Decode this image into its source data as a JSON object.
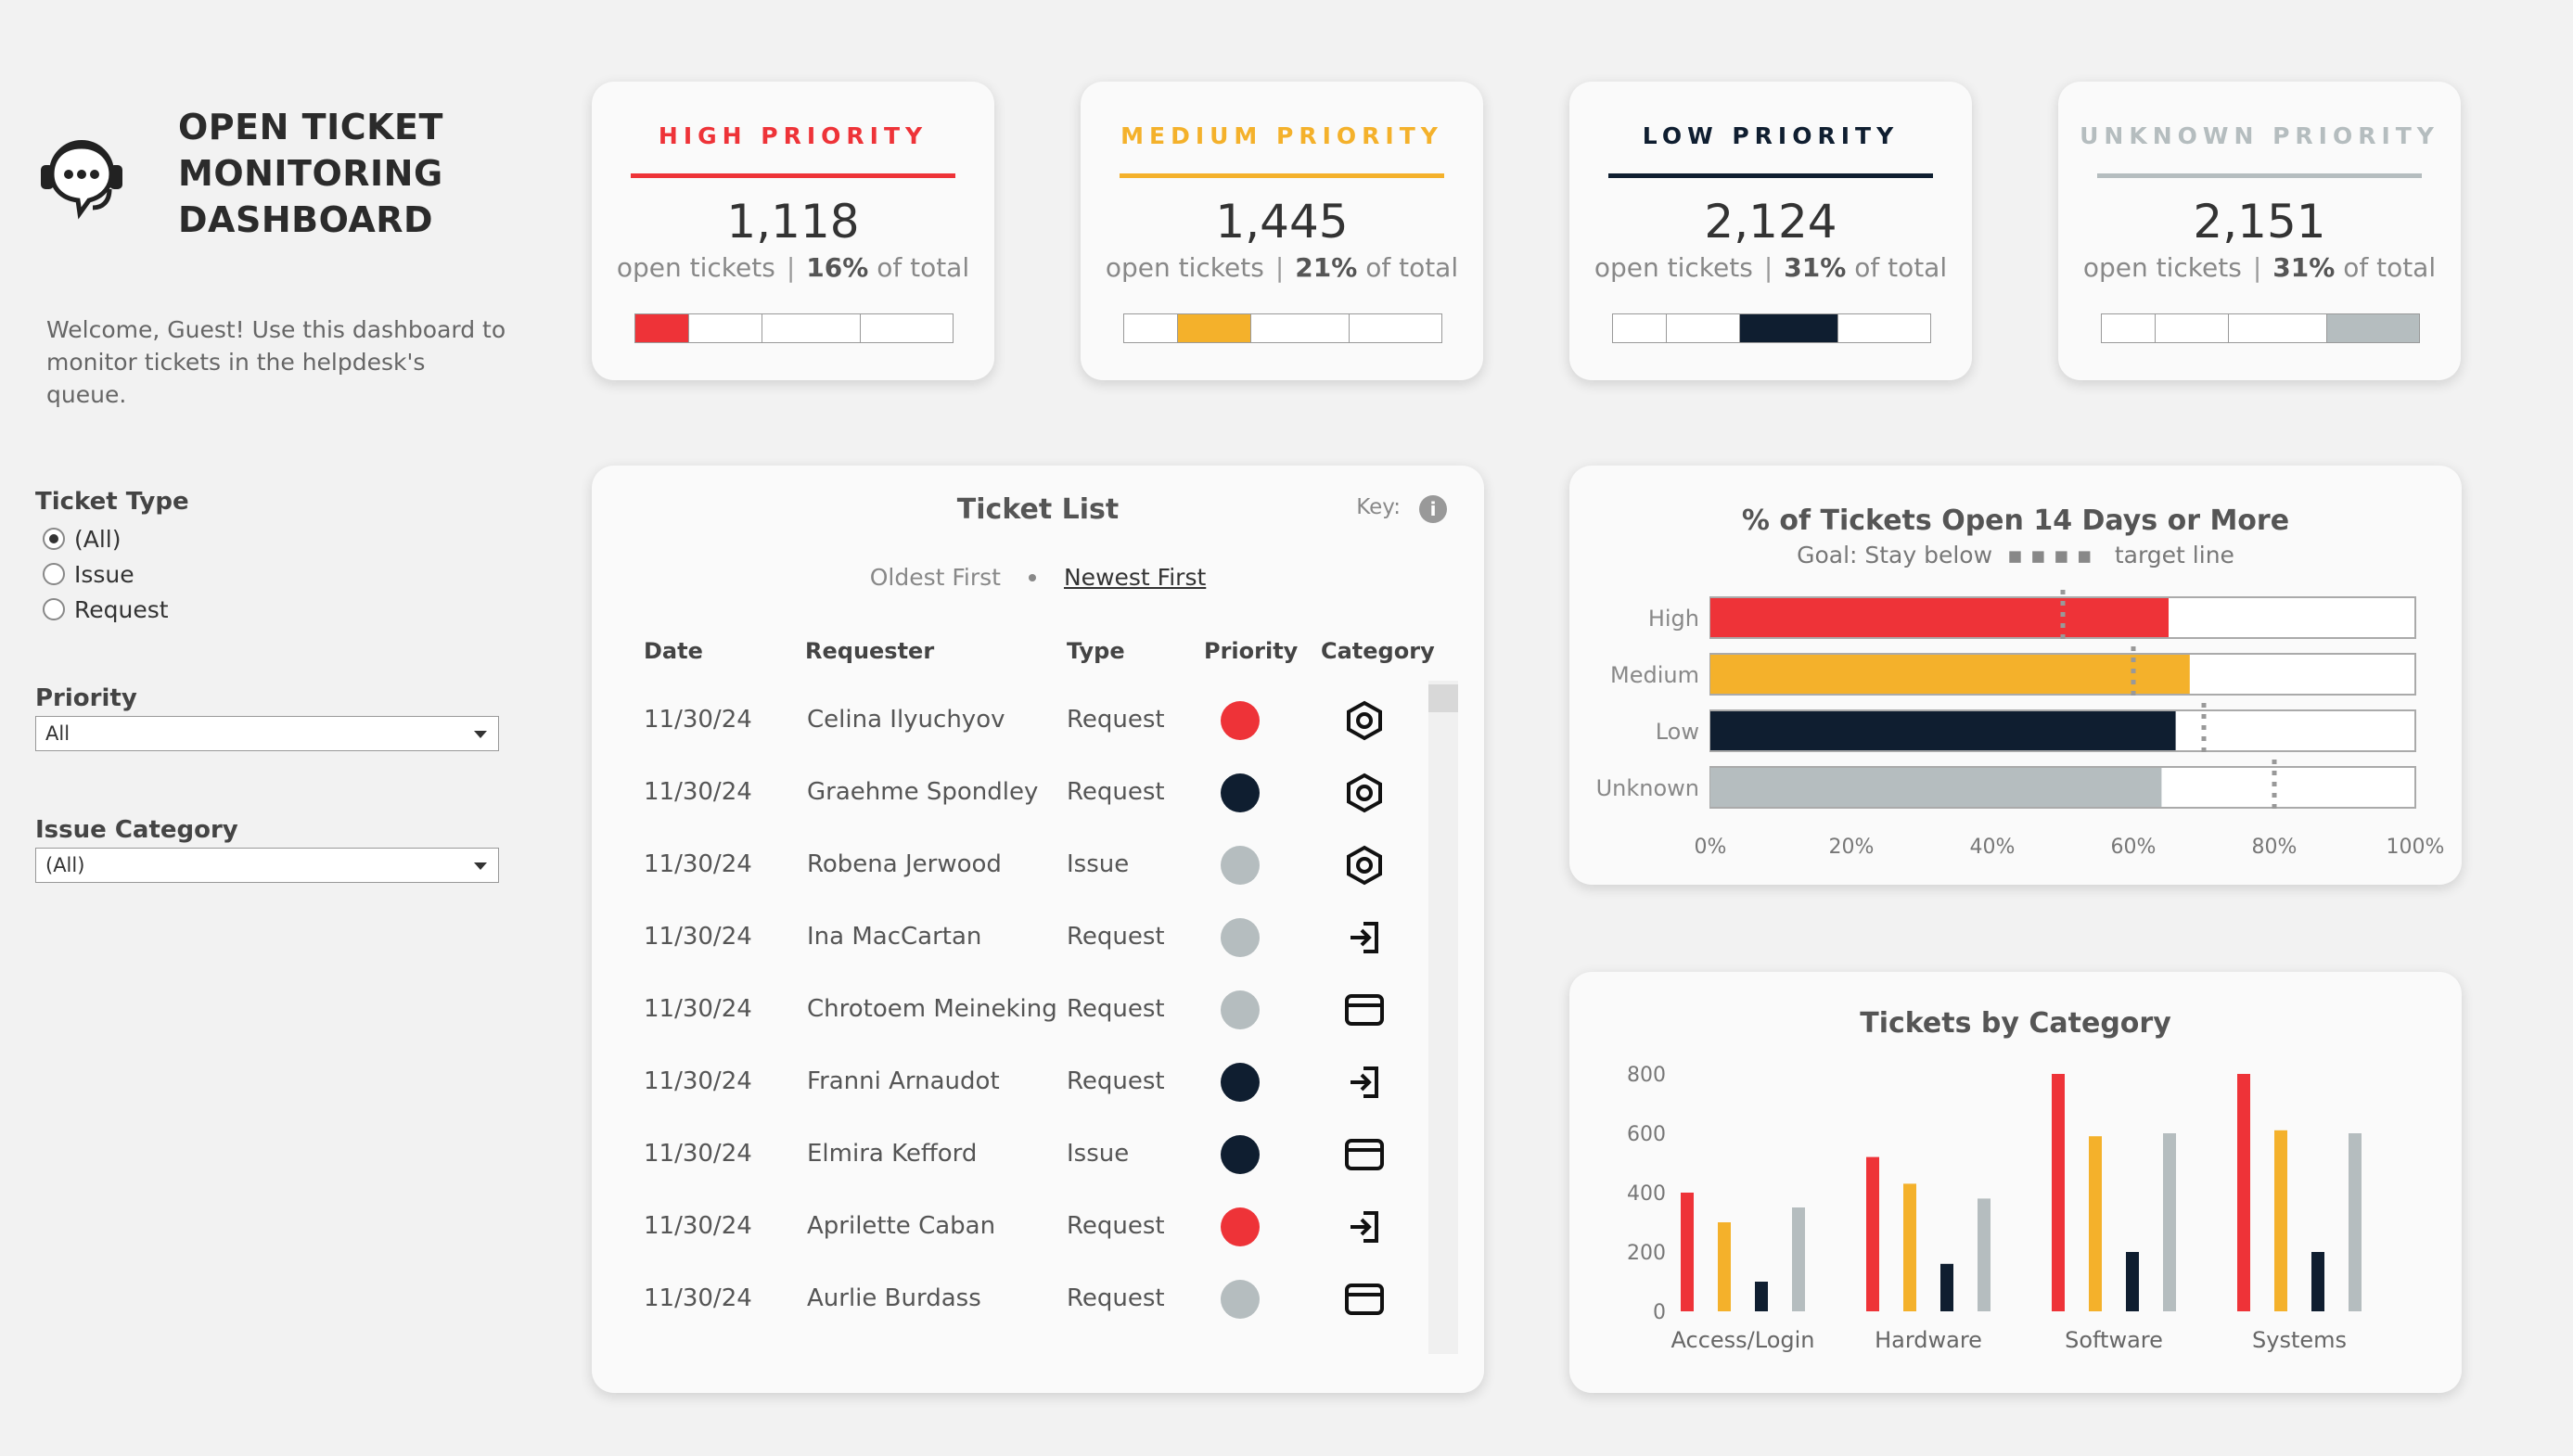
{
  "header": {
    "title_lines": [
      "OPEN TICKET",
      "MONITORING",
      "DASHBOARD"
    ],
    "welcome": "Welcome, Guest! Use this dashboard to monitor tickets in the helpdesk's queue."
  },
  "colors": {
    "high": "#ee3338",
    "medium": "#f4b12b",
    "low": "#0f1e30",
    "unknown": "#b5bdbf"
  },
  "filters": {
    "ticket_type": {
      "label": "Ticket Type",
      "options": [
        "(All)",
        "Issue",
        "Request"
      ],
      "selected": "(All)"
    },
    "priority": {
      "label": "Priority",
      "value": "All"
    },
    "issue_category": {
      "label": "Issue Category",
      "value": "(All)"
    }
  },
  "kpis": [
    {
      "title": "HIGH PRIORITY",
      "color": "#ee3338",
      "count": "1,118",
      "count_label": "open tickets",
      "pct": "16%",
      "pct_label": "of total",
      "active_segment": 0
    },
    {
      "title": "MEDIUM PRIORITY",
      "color": "#f4b12b",
      "count": "1,445",
      "count_label": "open tickets",
      "pct": "21%",
      "pct_label": "of total",
      "active_segment": 1
    },
    {
      "title": "LOW PRIORITY",
      "color": "#0f1e30",
      "count": "2,124",
      "count_label": "open tickets",
      "pct": "31%",
      "pct_label": "of total",
      "active_segment": 2
    },
    {
      "title": "UNKNOWN PRIORITY",
      "color": "#b5bdbf",
      "count": "2,151",
      "count_label": "open tickets",
      "pct": "31%",
      "pct_label": "of total",
      "active_segment": 3
    }
  ],
  "ticket_list": {
    "title": "Ticket List",
    "key_label": "Key:",
    "info_icon": "i",
    "sort_options": [
      "Oldest First",
      "Newest First"
    ],
    "sort_active": "Newest First",
    "columns": [
      "Date",
      "Requester",
      "Type",
      "Priority",
      "Category"
    ],
    "rows": [
      {
        "date": "11/30/24",
        "requester": "Celina Ilyuchyov",
        "type": "Request",
        "priority": "high",
        "category": "hex-nut-icon"
      },
      {
        "date": "11/30/24",
        "requester": "Graehme Spondley",
        "type": "Request",
        "priority": "low",
        "category": "hex-nut-icon"
      },
      {
        "date": "11/30/24",
        "requester": "Robena Jerwood",
        "type": "Issue",
        "priority": "unknown",
        "category": "hex-nut-icon"
      },
      {
        "date": "11/30/24",
        "requester": "Ina MacCartan",
        "type": "Request",
        "priority": "unknown",
        "category": "login-icon"
      },
      {
        "date": "11/30/24",
        "requester": "Chrotoem Meineking",
        "type": "Request",
        "priority": "unknown",
        "category": "browser-window-icon"
      },
      {
        "date": "11/30/24",
        "requester": "Franni Arnaudot",
        "type": "Request",
        "priority": "low",
        "category": "login-icon"
      },
      {
        "date": "11/30/24",
        "requester": "Elmira Kefford",
        "type": "Issue",
        "priority": "low",
        "category": "browser-window-icon"
      },
      {
        "date": "11/30/24",
        "requester": "Aprilette Caban",
        "type": "Request",
        "priority": "high",
        "category": "login-icon"
      },
      {
        "date": "11/30/24",
        "requester": "Aurlie Burdass",
        "type": "Request",
        "priority": "unknown",
        "category": "browser-window-icon"
      }
    ]
  },
  "aging_chart": {
    "title": "% of Tickets Open 14 Days or More",
    "subtitle_left": "Goal: Stay below",
    "subtitle_dots": "▪▪▪▪",
    "subtitle_right": "target line"
  },
  "category_chart": {
    "title": "Tickets by Category"
  },
  "chart_data": [
    {
      "type": "bar",
      "orientation": "horizontal",
      "title": "% of Tickets Open 14 Days or More",
      "subtitle": "Goal: Stay below target line",
      "categories": [
        "High",
        "Medium",
        "Low",
        "Unknown"
      ],
      "values": [
        65,
        68,
        66,
        64
      ],
      "targets": [
        50,
        60,
        70,
        80
      ],
      "colors": [
        "#ee3338",
        "#f4b12b",
        "#0f1e30",
        "#b5bdbf"
      ],
      "xlim": [
        0,
        100
      ],
      "xticks": [
        "0%",
        "20%",
        "40%",
        "60%",
        "80%",
        "100%"
      ],
      "xtick_values": [
        0,
        20,
        40,
        60,
        80,
        100
      ]
    },
    {
      "type": "bar",
      "title": "Tickets by Category",
      "categories": [
        "Access/Login",
        "Hardware",
        "Software",
        "Systems"
      ],
      "series": [
        {
          "values": [
            400,
            520,
            800,
            800
          ],
          "color": "#ee3338"
        },
        {
          "values": [
            300,
            430,
            590,
            610
          ],
          "color": "#f4b12b"
        },
        {
          "values": [
            100,
            160,
            200,
            200
          ],
          "color": "#0f1e30"
        },
        {
          "values": [
            350,
            380,
            600,
            600
          ],
          "color": "#b5bdbf"
        }
      ],
      "grouping": "by_category",
      "ylim": [
        0,
        800
      ],
      "yticks": [
        "800",
        "600",
        "400",
        "200",
        "0"
      ]
    }
  ]
}
